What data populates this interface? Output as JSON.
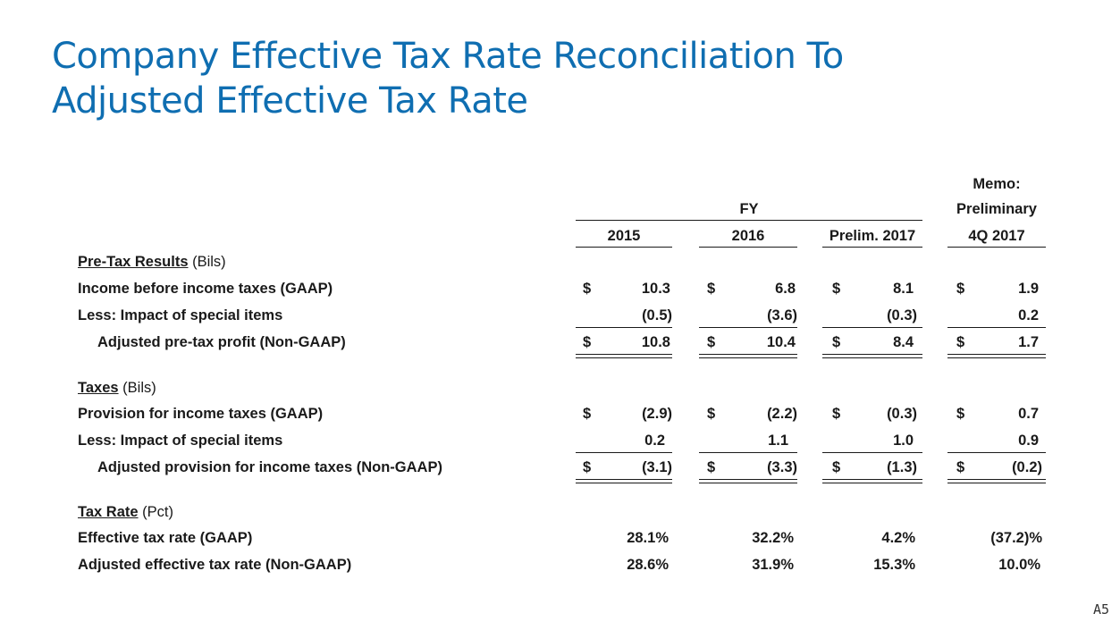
{
  "title": {
    "line1": "Company Effective Tax Rate Reconciliation To",
    "line2": "Adjusted Effective Tax Rate"
  },
  "header": {
    "memo_line1": "Memo:",
    "memo_line2": "Preliminary",
    "fy_label": "FY",
    "columns": [
      "2015",
      "2016",
      "Prelim. 2017",
      "4Q 2017"
    ]
  },
  "sections": {
    "pretax": {
      "heading": "Pre-Tax Results",
      "unit": "(Bils)",
      "rows": [
        {
          "label": "Income before income taxes (GAAP)",
          "dollar": "$",
          "values": [
            "10.3",
            "6.8",
            "8.1",
            "1.9"
          ]
        },
        {
          "label": "Less:  Impact of special items",
          "dollar": "",
          "values": [
            "(0.5)",
            "(3.6)",
            "(0.3)",
            "0.2"
          ]
        },
        {
          "label": "Adjusted pre-tax profit (Non-GAAP)",
          "dollar": "$",
          "values": [
            "10.8",
            "10.4",
            "8.4",
            "1.7"
          ]
        }
      ]
    },
    "taxes": {
      "heading": "Taxes",
      "unit": "(Bils)",
      "rows": [
        {
          "label": "Provision for income taxes (GAAP)",
          "dollar": "$",
          "values": [
            "(2.9)",
            "(2.2)",
            "(0.3)",
            "0.7"
          ]
        },
        {
          "label": "Less:  Impact of special items",
          "dollar": "",
          "values": [
            "0.2",
            "1.1",
            "1.0",
            "0.9"
          ]
        },
        {
          "label": "Adjusted provision for income taxes (Non-GAAP)",
          "dollar": "$",
          "values": [
            "(3.1)",
            "(3.3)",
            "(1.3)",
            "(0.2)"
          ]
        }
      ]
    },
    "rate": {
      "heading": "Tax Rate",
      "unit": "(Pct)",
      "rows": [
        {
          "label": "Effective tax rate (GAAP)",
          "values": [
            "28.1%",
            "32.2%",
            "4.2%",
            "(37.2)%"
          ]
        },
        {
          "label": "Adjusted effective tax rate (Non-GAAP)",
          "values": [
            "28.6%",
            "31.9%",
            "15.3%",
            "10.0%"
          ]
        }
      ]
    }
  },
  "page_number": "A5"
}
